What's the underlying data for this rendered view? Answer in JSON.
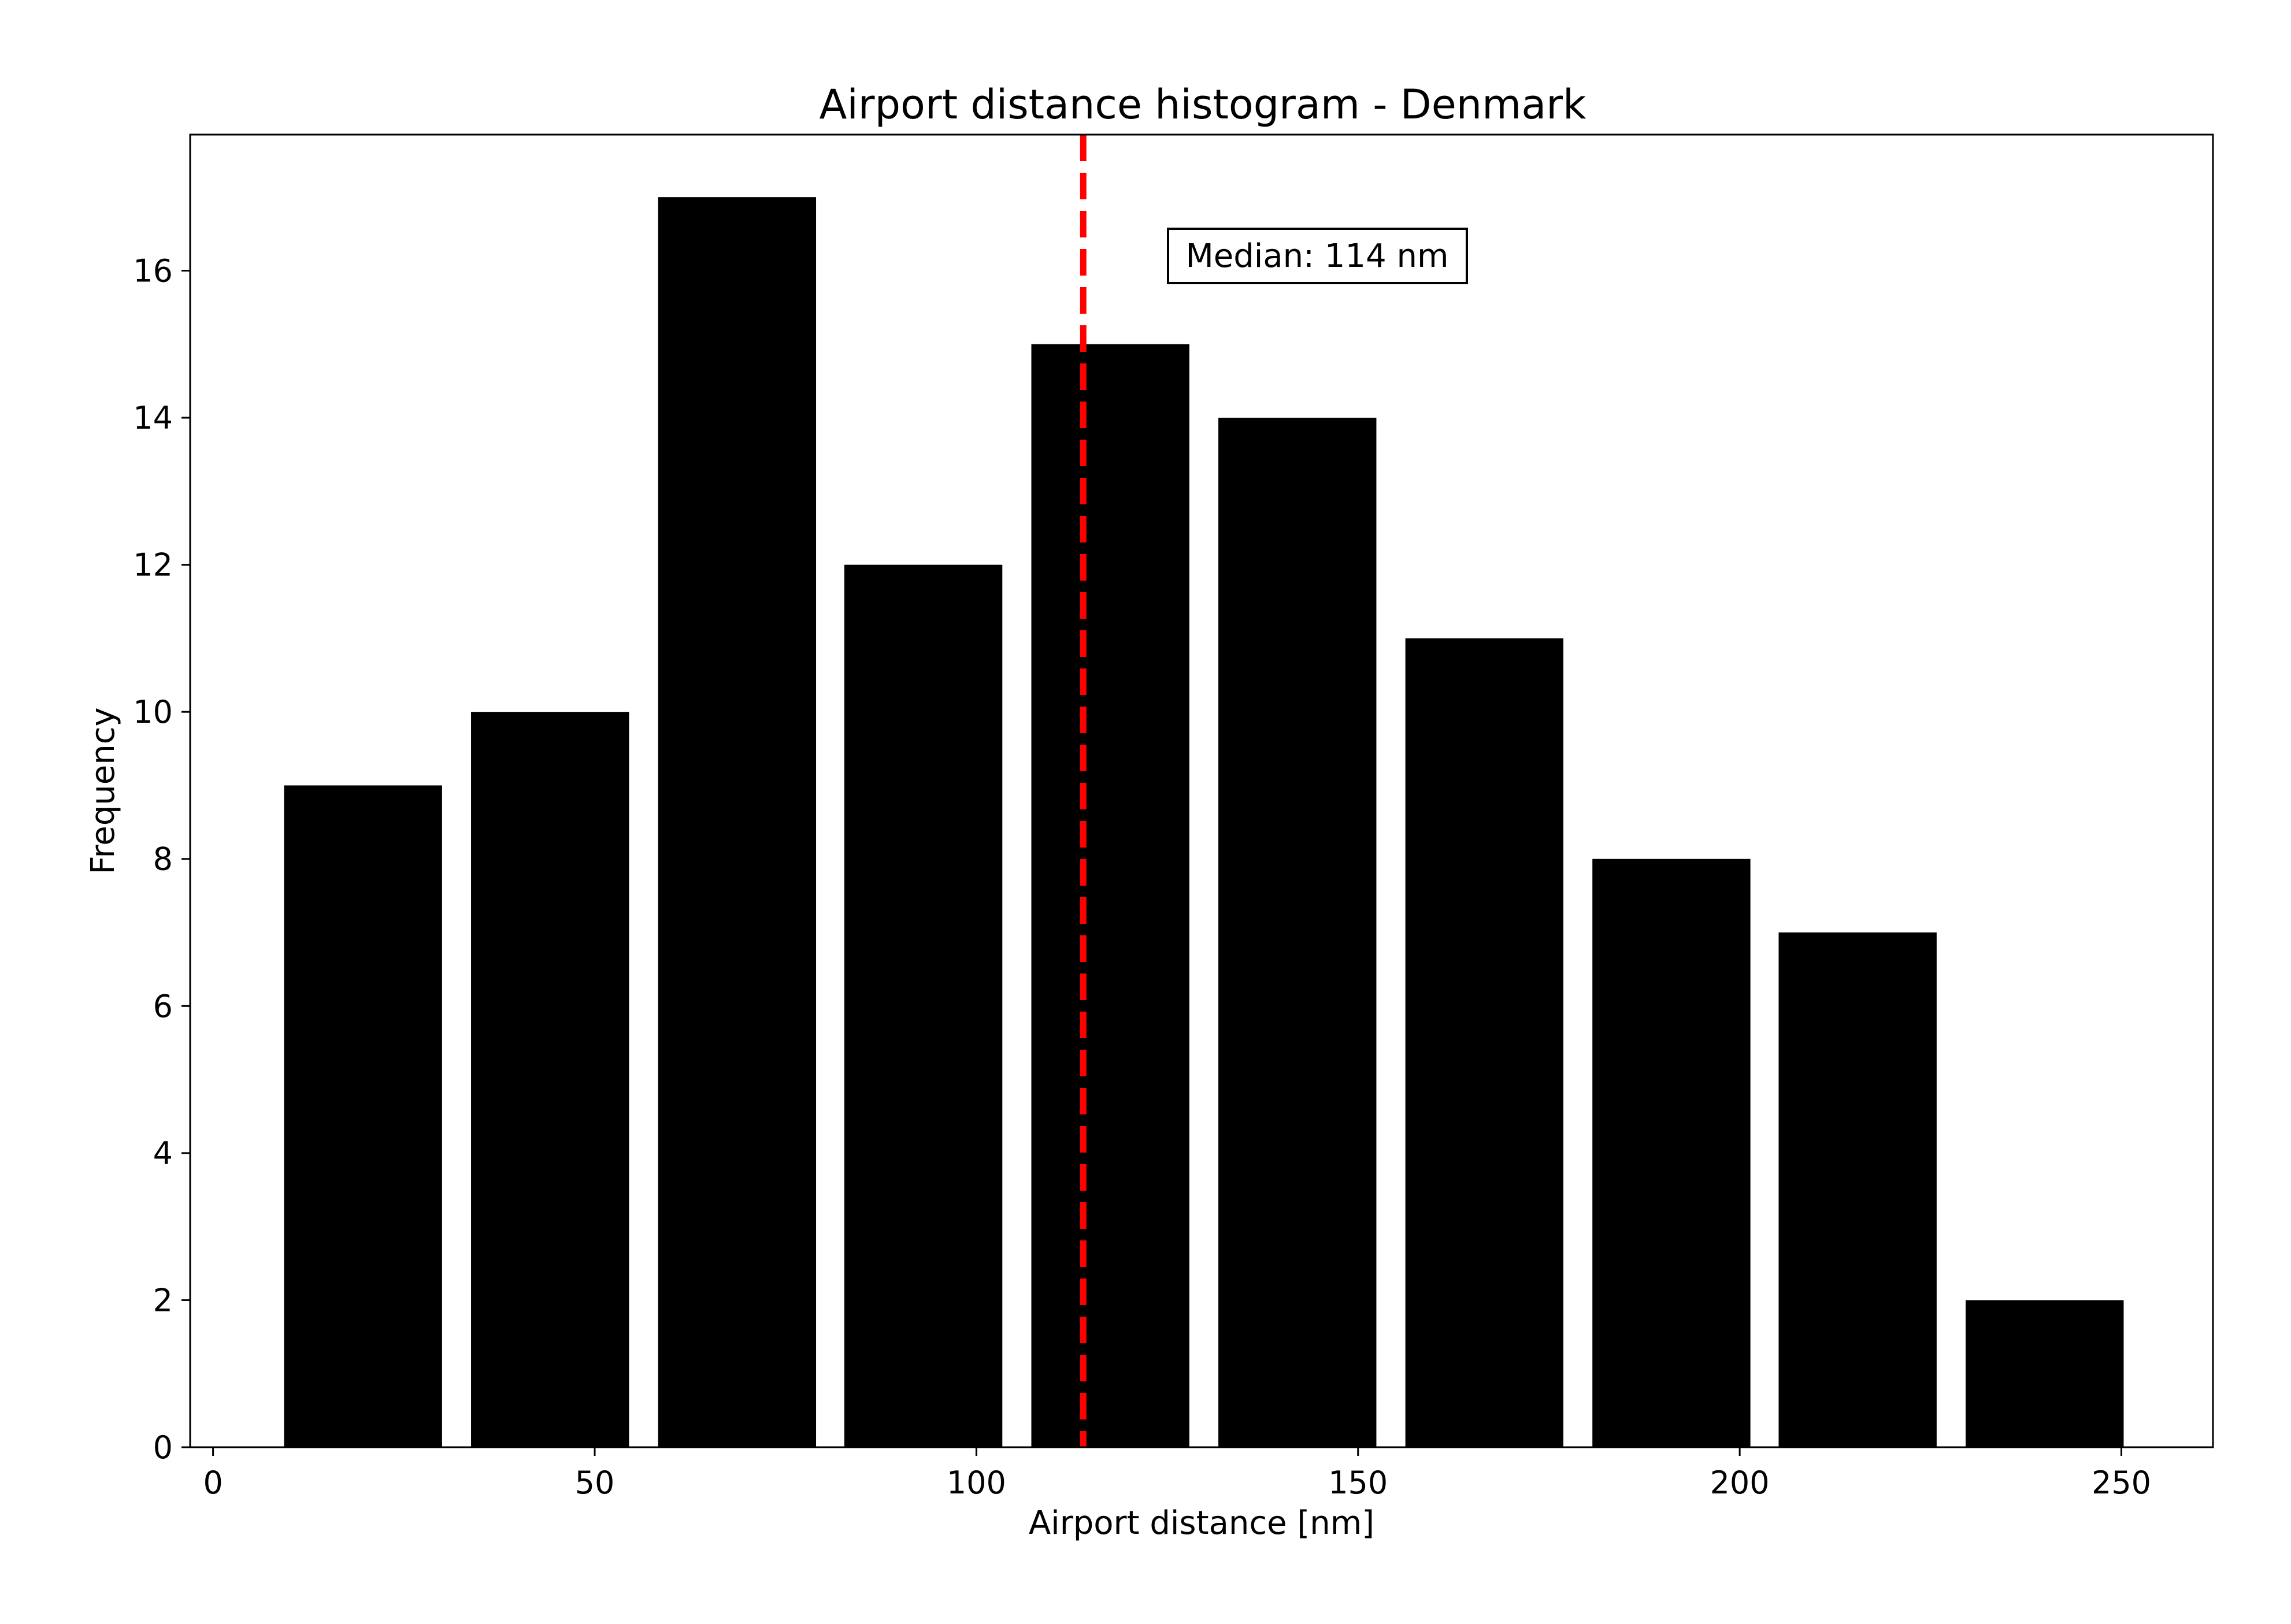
{
  "chart_data": {
    "type": "bar",
    "title": "Airport distance histogram - Denmark",
    "xlabel": "Airport distance [nm]",
    "ylabel": "Frequency",
    "xlim": [
      -3,
      262
    ],
    "ylim": [
      0,
      17.85
    ],
    "xticks": [
      0,
      50,
      100,
      150,
      200,
      250
    ],
    "yticks": [
      0,
      2,
      4,
      6,
      8,
      10,
      12,
      14,
      16
    ],
    "bins": [
      {
        "x0": 9.3,
        "x1": 30.0,
        "count": 9
      },
      {
        "x0": 33.8,
        "x1": 54.5,
        "count": 10
      },
      {
        "x0": 58.3,
        "x1": 79.0,
        "count": 17
      },
      {
        "x0": 82.7,
        "x1": 103.4,
        "count": 12
      },
      {
        "x0": 107.2,
        "x1": 127.9,
        "count": 15
      },
      {
        "x0": 131.7,
        "x1": 152.4,
        "count": 14
      },
      {
        "x0": 156.2,
        "x1": 176.9,
        "count": 11
      },
      {
        "x0": 180.7,
        "x1": 201.4,
        "count": 8
      },
      {
        "x0": 205.1,
        "x1": 225.8,
        "count": 7
      },
      {
        "x0": 229.6,
        "x1": 250.3,
        "count": 2
      }
    ],
    "bar_color": "#000000",
    "median": {
      "value": 114,
      "label": "Median: 114 nm",
      "color": "#ff0000",
      "linestyle": "dashed"
    },
    "grid": false
  }
}
